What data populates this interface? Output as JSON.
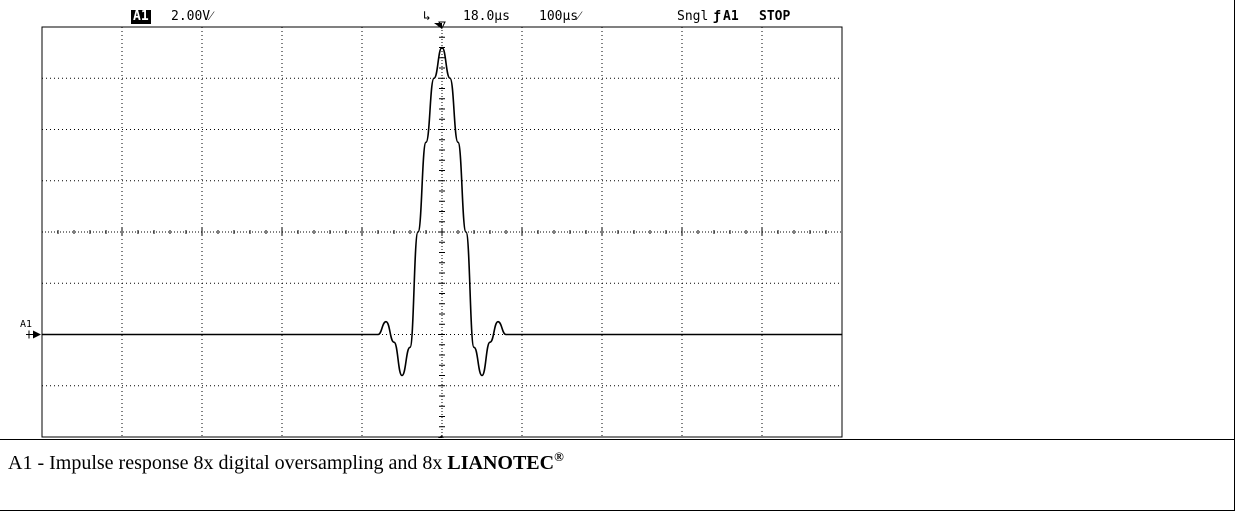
{
  "header": {
    "channel": "A1",
    "volts_div": "2.00V⁄",
    "trigger_pos": "18.0µs",
    "time_div": "100µs⁄",
    "mode": "Sngl",
    "trigger_source": "A1",
    "run_state": "STOP"
  },
  "channel_marker": {
    "label": "A1"
  },
  "caption": {
    "text": "A1 - Impulse response 8x digital oversampling and 8x ",
    "brand": "LIANOTEC",
    "registered": "®"
  },
  "chart_data": {
    "type": "line",
    "title": "",
    "xlabel": "",
    "ylabel": "",
    "grid": true,
    "grid_divisions": {
      "x": 10,
      "y": 8
    },
    "units": {
      "x": "µs",
      "y": "V"
    },
    "xlim": [
      -500,
      500
    ],
    "ylim": [
      -8,
      8
    ],
    "series": [
      {
        "x": [
          -500,
          -80,
          -70,
          -60,
          -50,
          -40,
          -30,
          -20,
          -10,
          0,
          10,
          20,
          30,
          40,
          50,
          60,
          70,
          80,
          500
        ],
        "values": [
          -4,
          -4,
          -3.5,
          -4.3,
          -5.6,
          -4.5,
          0,
          3.5,
          6.0,
          7.2,
          6.0,
          3.5,
          0,
          -4.5,
          -5.6,
          -4.3,
          -3.5,
          -4,
          -4
        ]
      }
    ]
  }
}
